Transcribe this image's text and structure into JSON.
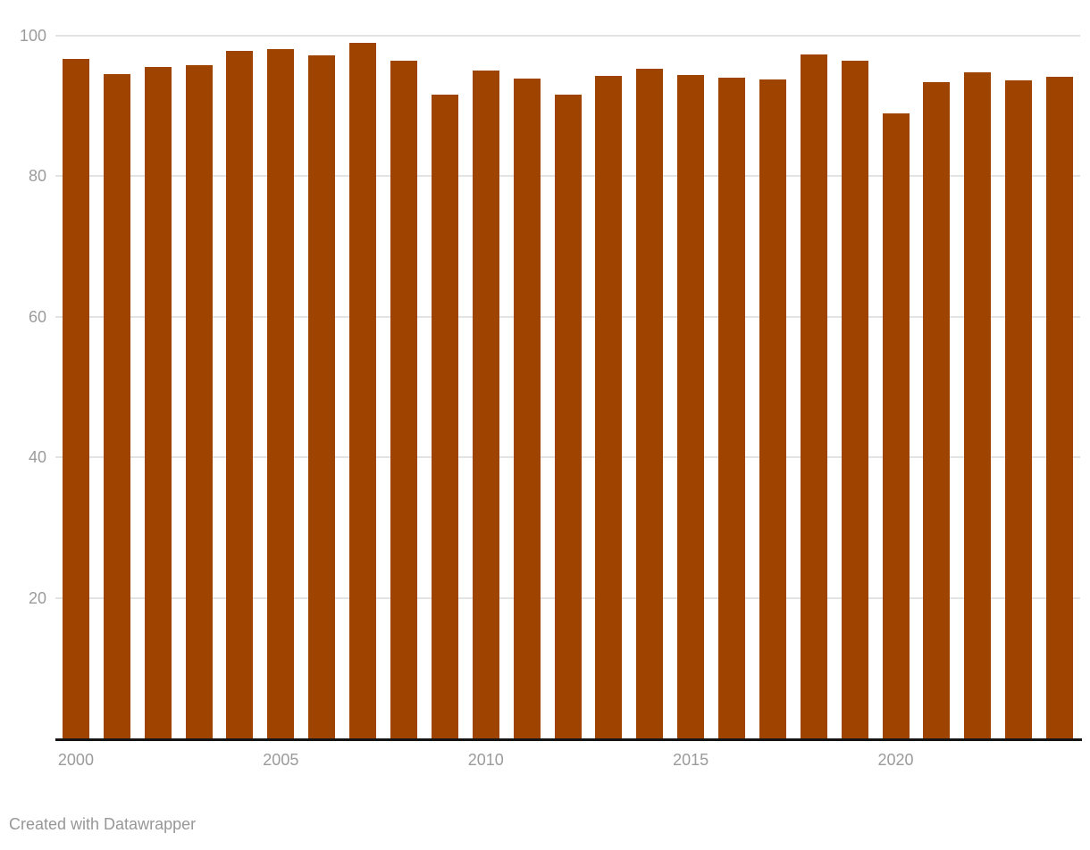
{
  "footer": {
    "credit": "Created with Datawrapper"
  },
  "colors": {
    "bar": "#9E4400",
    "grid": "#E3E3E3",
    "axis_line": "#151515",
    "tick_label": "#9B9B9B",
    "footer_text": "#979797",
    "background": "#FFFFFF"
  },
  "chart_data": {
    "type": "bar",
    "x": [
      2000,
      2001,
      2002,
      2003,
      2004,
      2005,
      2006,
      2007,
      2008,
      2009,
      2010,
      2011,
      2012,
      2013,
      2014,
      2015,
      2016,
      2017,
      2018,
      2019,
      2020,
      2021,
      2022,
      2023,
      2024
    ],
    "values": [
      96.7,
      94.5,
      95.6,
      95.8,
      97.9,
      98.1,
      97.2,
      99.0,
      96.5,
      91.6,
      95.1,
      93.9,
      91.6,
      94.3,
      95.3,
      94.4,
      94.0,
      93.8,
      97.3,
      96.5,
      88.9,
      93.4,
      94.8,
      93.7,
      94.2
    ],
    "title": "",
    "xlabel": "",
    "ylabel": "",
    "ylim": [
      0,
      100
    ],
    "yticks": [
      20,
      40,
      60,
      80,
      100
    ],
    "ytick_labels": [
      "20",
      "40",
      "60",
      "80",
      "100"
    ],
    "xticks": [
      2000,
      2005,
      2010,
      2015,
      2020
    ],
    "xtick_labels": [
      "2000",
      "2005",
      "2010",
      "2015",
      "2020"
    ],
    "grid": "horizontal",
    "legend": "none",
    "bar_color": "#9E4400"
  }
}
